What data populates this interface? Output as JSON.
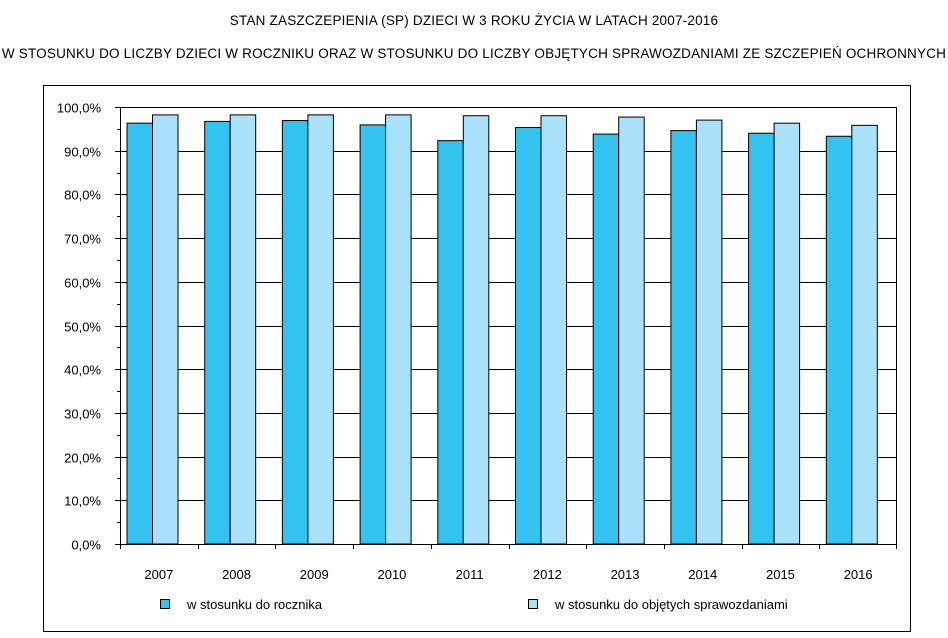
{
  "chart_data": {
    "type": "bar",
    "title": "STAN ZASZCZEPIENIA (SP) DZIECI W 3 ROKU ŻYCIA W LATACH 2007-2016",
    "subtitle": "W STOSUNKU DO LICZBY DZIECI W ROCZNIKU ORAZ W STOSUNKU DO LICZBY OBJĘTYCH SPRAWOZDANIAMI ZE SZCZEPIEŃ OCHRONNYCH",
    "categories": [
      "2007",
      "2008",
      "2009",
      "2010",
      "2011",
      "2012",
      "2013",
      "2014",
      "2015",
      "2016"
    ],
    "series": [
      {
        "name": "w stosunku do rocznika",
        "color": "#33c3f0",
        "values": [
          96.3,
          96.7,
          96.9,
          95.9,
          92.3,
          95.3,
          93.8,
          94.6,
          94.0,
          93.3
        ]
      },
      {
        "name": "w stosunku do objętych sprawozdaniami",
        "color": "#a9e0fa",
        "values": [
          98.2,
          98.2,
          98.2,
          98.2,
          98.0,
          98.0,
          97.7,
          97.0,
          96.3,
          95.8
        ]
      }
    ],
    "ylim": [
      0,
      100
    ],
    "yticks": [
      "0,0%",
      "10,0%",
      "20,0%",
      "30,0%",
      "40,0%",
      "50,0%",
      "60,0%",
      "70,0%",
      "80,0%",
      "90,0%",
      "100,0%"
    ],
    "grid": true,
    "legend_position": "bottom"
  }
}
